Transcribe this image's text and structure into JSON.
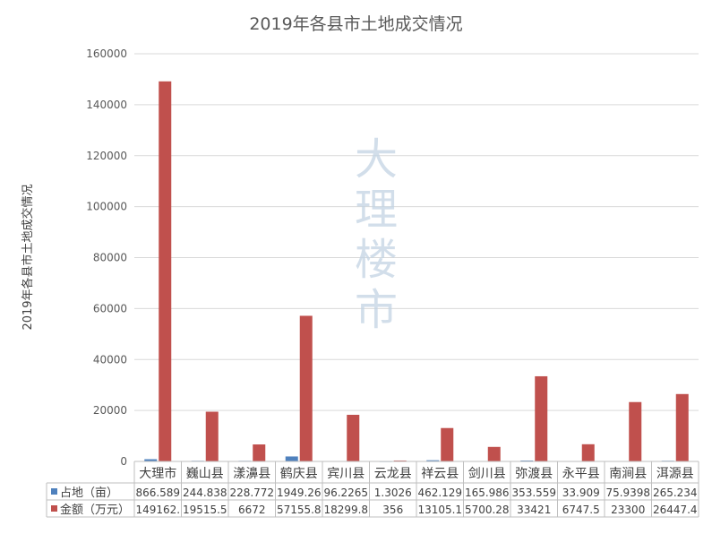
{
  "chart_data": {
    "type": "bar",
    "title": "2019年各县市土地成交情况",
    "ylabel": "2019年各县市土地成交情况",
    "xlabel": "",
    "ylim": [
      0,
      160000
    ],
    "yticks": [
      0,
      20000,
      40000,
      60000,
      80000,
      100000,
      120000,
      140000,
      160000
    ],
    "grid": true,
    "legend": "data-table",
    "categories": [
      "大理市",
      "巍山县",
      "漾濞县",
      "鹤庆县",
      "宾川县",
      "云龙县",
      "祥云县",
      "剑川县",
      "弥渡县",
      "永平县",
      "南涧县",
      "洱源县"
    ],
    "series": [
      {
        "name": "占地（亩）",
        "color": "#4f81bd",
        "values": [
          866.589,
          244.838,
          228.772,
          1949.26,
          96.2265,
          1.3026,
          462.129,
          165.986,
          353.559,
          33.909,
          75.9398,
          265.234
        ],
        "labels": [
          "866.589",
          "244.838",
          "228.772",
          "1949.26",
          "96.2265",
          "1.3026",
          "462.129",
          "165.986",
          "353.559",
          "33.909",
          "75.9398",
          "265.234"
        ]
      },
      {
        "name": "金额（万元）",
        "color": "#c0504d",
        "values": [
          149162,
          19515.5,
          6672,
          57155.8,
          18299.8,
          356,
          13105.1,
          5700.28,
          33421,
          6747.5,
          23300,
          26447.4
        ],
        "labels": [
          "149162.",
          "19515.5",
          "6672",
          "57155.8",
          "18299.8",
          "356",
          "13105.1",
          "5700.28",
          "33421",
          "6747.5",
          "23300",
          "26447.4"
        ]
      }
    ]
  },
  "watermark": [
    "大",
    "理",
    "楼",
    "市"
  ]
}
